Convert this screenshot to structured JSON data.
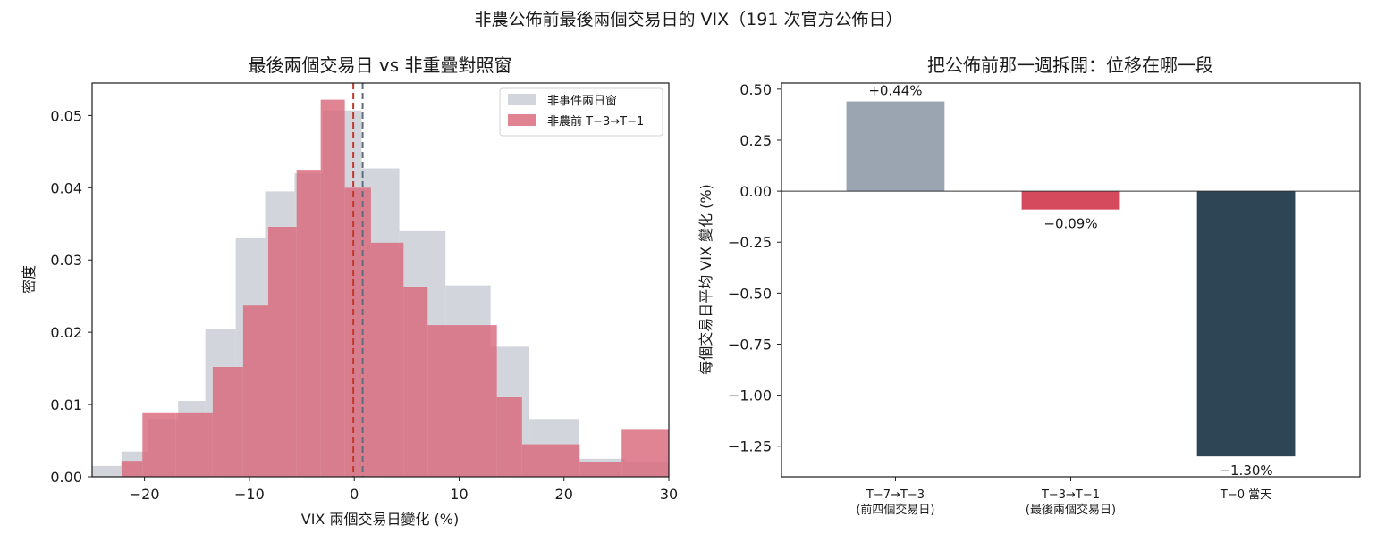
{
  "suptitle": "非農公佈前最後兩個交易日的 VIX（191 次官方公佈日）",
  "colors": {
    "control": "#c5cbd2",
    "event": "#d9697c",
    "event_line": "#c0392b",
    "control_line": "#5d6d7e",
    "bar_first": "#9aa5b1",
    "bar_second": "#d64a5e",
    "bar_third": "#2e4556",
    "axis": "#1a1a1a"
  },
  "chart_data": [
    {
      "type": "histogram",
      "title": "最後兩個交易日 vs 非重疊對照窗",
      "xlabel": "VIX 兩個交易日變化 (%)",
      "ylabel": "密度",
      "xlim": [
        -25,
        30
      ],
      "ylim": [
        0,
        0.0545
      ],
      "xticks": [
        -20,
        -10,
        0,
        10,
        20,
        30
      ],
      "xtick_labels": [
        "−20",
        "−10",
        "0",
        "10",
        "20",
        "30"
      ],
      "yticks": [
        0,
        0.01,
        0.02,
        0.03,
        0.04,
        0.05
      ],
      "ytick_labels": [
        "0.00",
        "0.01",
        "0.02",
        "0.03",
        "0.04",
        "0.05"
      ],
      "legend_position": "top-right",
      "series": [
        {
          "name": "非事件兩日窗",
          "bins": [
            [
              -25.0,
              -22.2,
              0.0015
            ],
            [
              -22.2,
              -19.7,
              0.0035
            ],
            [
              -19.7,
              -16.8,
              0.008
            ],
            [
              -16.8,
              -14.2,
              0.0105
            ],
            [
              -14.2,
              -11.3,
              0.0205
            ],
            [
              -11.3,
              -8.5,
              0.033
            ],
            [
              -8.5,
              -5.7,
              0.0395
            ],
            [
              -5.7,
              -3.0,
              0.042
            ],
            [
              -3.0,
              0.7,
              0.0507
            ],
            [
              0.7,
              4.3,
              0.0427
            ],
            [
              4.3,
              8.7,
              0.034
            ],
            [
              8.7,
              13.0,
              0.0265
            ],
            [
              13.0,
              16.7,
              0.018
            ],
            [
              16.7,
              21.4,
              0.008
            ],
            [
              21.4,
              25.8,
              0.0025
            ],
            [
              25.8,
              30.0,
              0.002
            ]
          ]
        },
        {
          "name": "非農前 T−3→T−1",
          "bins": [
            [
              -22.2,
              -20.2,
              0.0022
            ],
            [
              -20.2,
              -17.0,
              0.0088
            ],
            [
              -17.0,
              -13.5,
              0.0088
            ],
            [
              -13.5,
              -10.6,
              0.0152
            ],
            [
              -10.6,
              -8.2,
              0.0237
            ],
            [
              -8.2,
              -5.5,
              0.0346
            ],
            [
              -5.5,
              -3.2,
              0.0425
            ],
            [
              -3.2,
              -0.9,
              0.0522
            ],
            [
              -0.9,
              1.6,
              0.04
            ],
            [
              1.6,
              4.7,
              0.0324
            ],
            [
              4.7,
              7.0,
              0.0262
            ],
            [
              7.0,
              13.6,
              0.021
            ],
            [
              13.6,
              16.0,
              0.011
            ],
            [
              16.0,
              21.5,
              0.0045
            ],
            [
              21.5,
              25.5,
              0.002
            ],
            [
              25.5,
              30.0,
              0.0065
            ]
          ]
        }
      ],
      "vlines": [
        {
          "series": "event",
          "x": -0.09
        },
        {
          "series": "control",
          "x": 0.8
        }
      ]
    },
    {
      "type": "bar",
      "title": "把公佈前那一週拆開：位移在哪一段",
      "ylabel": "每個交易日平均 VIX 變化 (%)",
      "categories": [
        [
          "T−7→T−3",
          "(前四個交易日)"
        ],
        [
          "T−3→T−1",
          "(最後兩個交易日)"
        ],
        [
          "T−0 當天"
        ]
      ],
      "values": [
        0.44,
        -0.09,
        -1.3
      ],
      "value_labels": [
        "+0.44%",
        "−0.09%",
        "−1.30%"
      ],
      "ylim": [
        -1.4,
        0.53
      ],
      "yticks": [
        0.5,
        0.25,
        0,
        -0.25,
        -0.5,
        -0.75,
        -1.0,
        -1.25
      ],
      "ytick_labels": [
        "0.50",
        "0.25",
        "0.00",
        "−0.25",
        "−0.50",
        "−0.75",
        "−1.00",
        "−1.25"
      ]
    }
  ]
}
